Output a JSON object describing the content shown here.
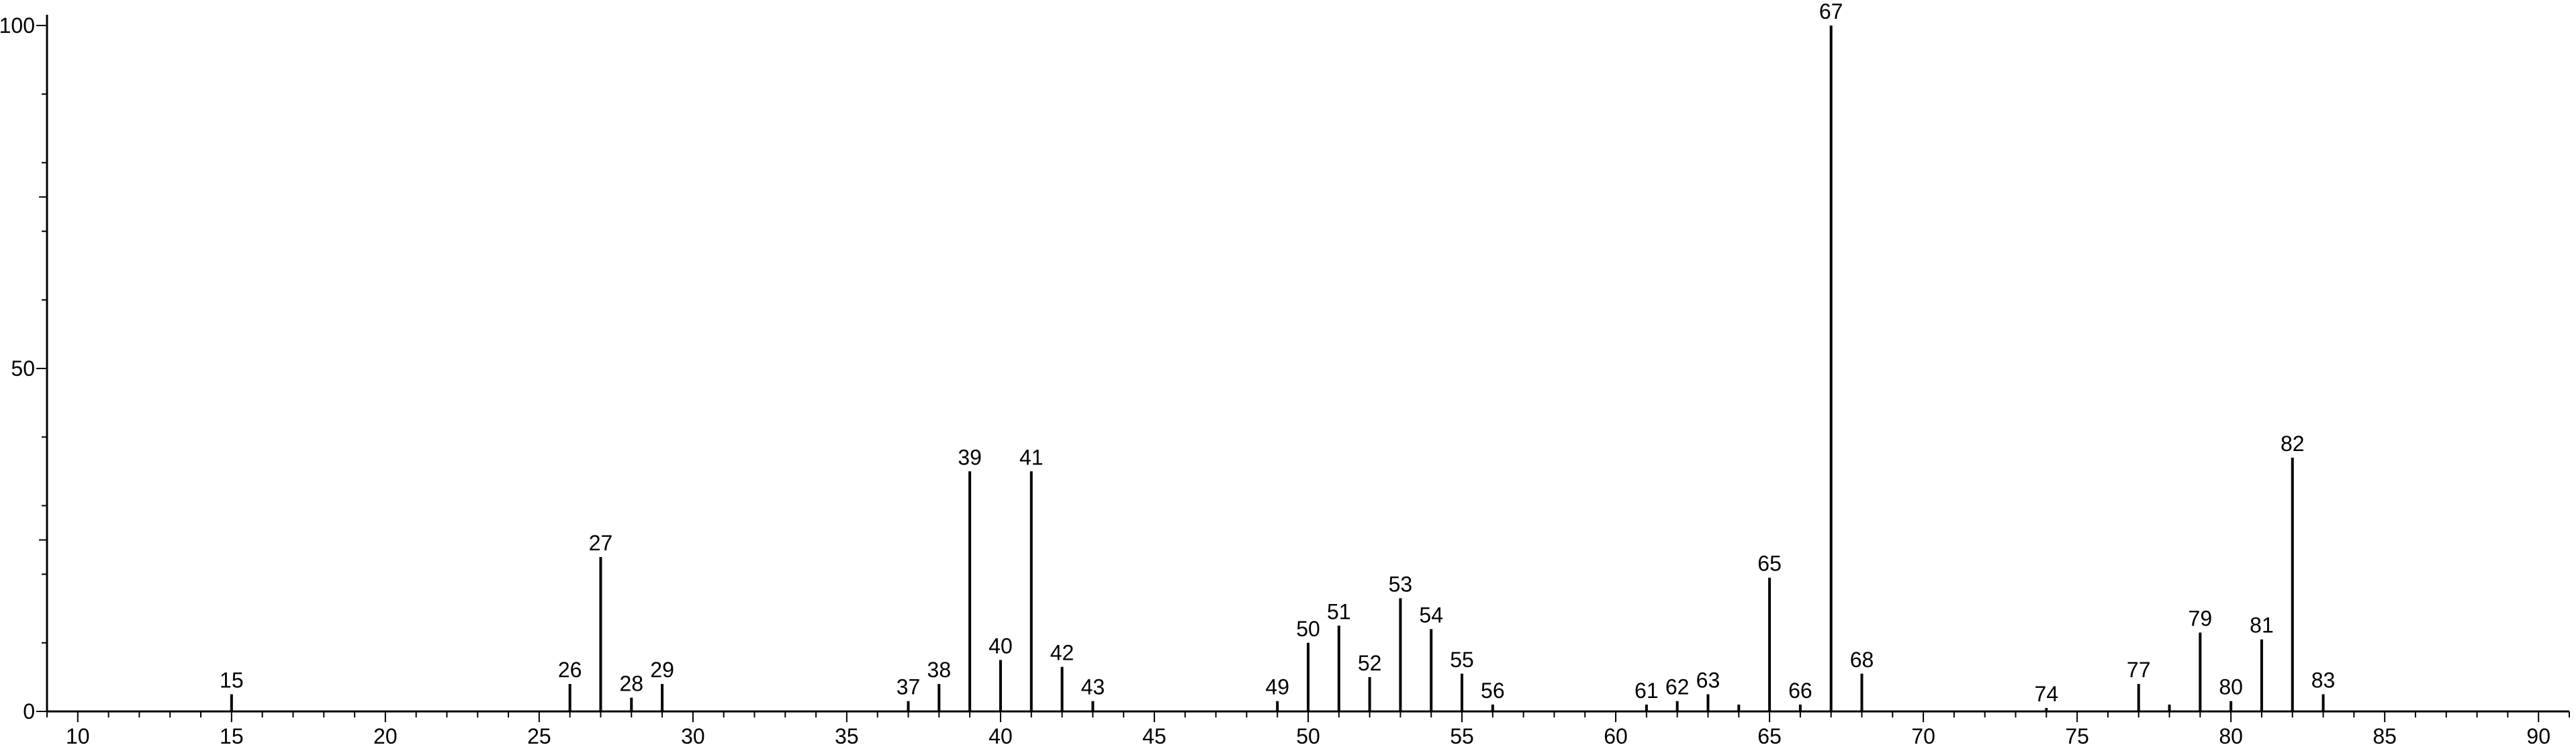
{
  "chart_data": {
    "type": "bar",
    "title": "",
    "xlabel": "",
    "ylabel": "",
    "xlim": [
      9,
      91
    ],
    "ylim": [
      0,
      100
    ],
    "x_ticks_labeled": [
      10,
      15,
      20,
      25,
      30,
      35,
      40,
      45,
      50,
      55,
      60,
      65,
      70,
      75,
      80,
      85,
      90
    ],
    "y_ticks_labeled": [
      0,
      50,
      100
    ],
    "grid": false,
    "legend": "none",
    "colors": {
      "bars": "#000000",
      "axes": "#000000"
    },
    "peaks": [
      {
        "mz": 15,
        "intensity": 2.5,
        "label": "15"
      },
      {
        "mz": 26,
        "intensity": 4,
        "label": "26"
      },
      {
        "mz": 27,
        "intensity": 22.5,
        "label": "27"
      },
      {
        "mz": 28,
        "intensity": 2,
        "label": "28"
      },
      {
        "mz": 29,
        "intensity": 4,
        "label": "29"
      },
      {
        "mz": 37,
        "intensity": 1.5,
        "label": "37"
      },
      {
        "mz": 38,
        "intensity": 4,
        "label": "38"
      },
      {
        "mz": 39,
        "intensity": 35,
        "label": "39"
      },
      {
        "mz": 40,
        "intensity": 7.5,
        "label": "40"
      },
      {
        "mz": 41,
        "intensity": 35,
        "label": "41"
      },
      {
        "mz": 42,
        "intensity": 6.5,
        "label": "42"
      },
      {
        "mz": 43,
        "intensity": 1.5,
        "label": "43"
      },
      {
        "mz": 49,
        "intensity": 1.5,
        "label": "49"
      },
      {
        "mz": 50,
        "intensity": 10,
        "label": "50"
      },
      {
        "mz": 51,
        "intensity": 12.5,
        "label": "51"
      },
      {
        "mz": 52,
        "intensity": 5,
        "label": "52"
      },
      {
        "mz": 53,
        "intensity": 16.5,
        "label": "53"
      },
      {
        "mz": 54,
        "intensity": 12,
        "label": "54"
      },
      {
        "mz": 55,
        "intensity": 5.5,
        "label": "55"
      },
      {
        "mz": 56,
        "intensity": 1,
        "label": "56"
      },
      {
        "mz": 61,
        "intensity": 1,
        "label": "61"
      },
      {
        "mz": 62,
        "intensity": 1.5,
        "label": "62"
      },
      {
        "mz": 63,
        "intensity": 2.5,
        "label": "63"
      },
      {
        "mz": 64,
        "intensity": 1,
        "label": ""
      },
      {
        "mz": 65,
        "intensity": 19.5,
        "label": "65"
      },
      {
        "mz": 66,
        "intensity": 1,
        "label": "66"
      },
      {
        "mz": 67,
        "intensity": 100,
        "label": "67"
      },
      {
        "mz": 68,
        "intensity": 5.5,
        "label": "68"
      },
      {
        "mz": 74,
        "intensity": 0.5,
        "label": "74"
      },
      {
        "mz": 77,
        "intensity": 4,
        "label": "77"
      },
      {
        "mz": 78,
        "intensity": 1,
        "label": ""
      },
      {
        "mz": 79,
        "intensity": 11.5,
        "label": "79"
      },
      {
        "mz": 80,
        "intensity": 1.5,
        "label": "80"
      },
      {
        "mz": 81,
        "intensity": 10.5,
        "label": "81"
      },
      {
        "mz": 82,
        "intensity": 37,
        "label": "82"
      },
      {
        "mz": 83,
        "intensity": 2.5,
        "label": "83"
      }
    ]
  }
}
